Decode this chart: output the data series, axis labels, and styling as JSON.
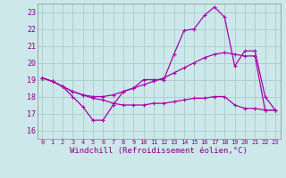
{
  "xlabel": "Windchill (Refroidissement éolien,°C)",
  "background_color": "#cce8ea",
  "grid_color": "#aacccc",
  "line_color": "#aa00aa",
  "x_hours": [
    0,
    1,
    2,
    3,
    4,
    5,
    6,
    7,
    8,
    9,
    10,
    11,
    12,
    13,
    14,
    15,
    16,
    17,
    18,
    19,
    20,
    21,
    22,
    23
  ],
  "ylim": [
    15.5,
    23.5
  ],
  "xlim": [
    -0.5,
    23.5
  ],
  "yticks": [
    16,
    17,
    18,
    19,
    20,
    21,
    22,
    23
  ],
  "series1": [
    19.1,
    18.9,
    18.6,
    18.0,
    17.4,
    16.6,
    16.6,
    17.5,
    18.3,
    18.5,
    19.0,
    19.0,
    19.0,
    20.5,
    21.9,
    22.0,
    22.8,
    23.3,
    22.7,
    19.8,
    20.7,
    20.7,
    18.0,
    17.2
  ],
  "series2": [
    19.1,
    18.9,
    18.6,
    18.3,
    18.1,
    18.0,
    18.0,
    18.1,
    18.3,
    18.5,
    18.7,
    18.9,
    19.1,
    19.4,
    19.7,
    20.0,
    20.3,
    20.5,
    20.6,
    20.5,
    20.4,
    20.4,
    17.2,
    17.2
  ],
  "series3": [
    19.1,
    18.9,
    18.6,
    18.3,
    18.1,
    17.9,
    17.8,
    17.6,
    17.5,
    17.5,
    17.5,
    17.6,
    17.6,
    17.7,
    17.8,
    17.9,
    17.9,
    18.0,
    18.0,
    17.5,
    17.3,
    17.3,
    17.2,
    17.2
  ],
  "xtick_fontsize": 5.0,
  "ytick_fontsize": 6.0,
  "xlabel_fontsize": 6.5
}
